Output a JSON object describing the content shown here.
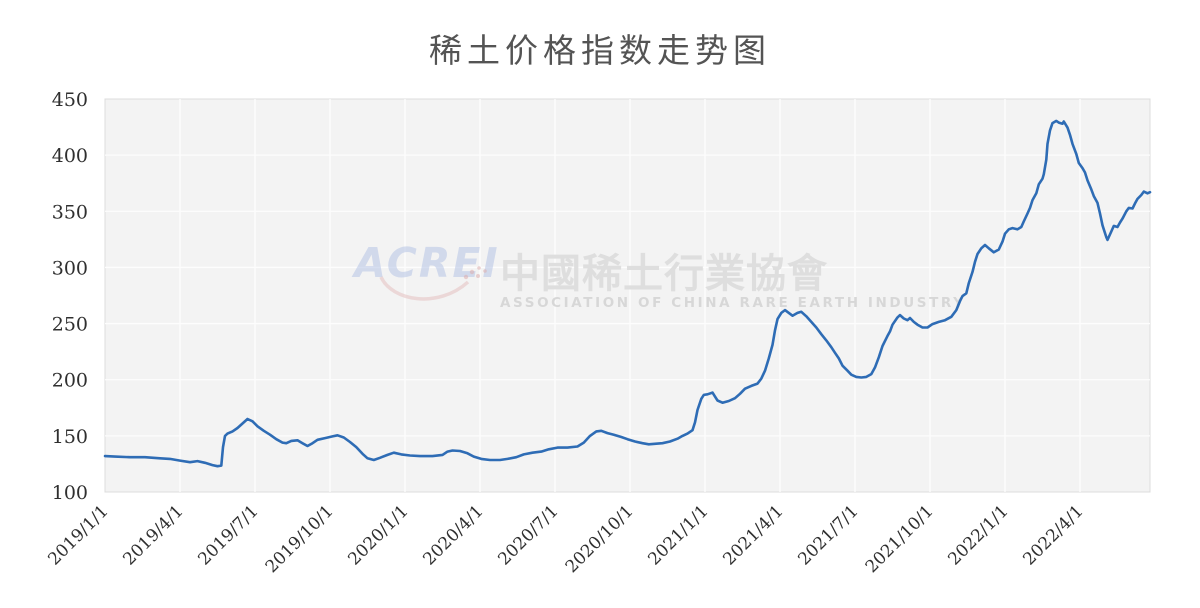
{
  "title": "稀土价格指数走势图",
  "watermark": {
    "logo_text": "ACREI",
    "cn_name": "中國稀土行業協會",
    "en_name": "ASSOCIATION OF CHINA RARE EARTH INDUSTRY"
  },
  "colors": {
    "line": "#2e6cb5",
    "plot_bg": "#f3f3f3",
    "grid": "#fdfdfd",
    "panel_border": "#dcdcdc",
    "axis_text": "#2f2f2f",
    "title_text": "#545454",
    "watermark_blue": "#b7c5e6",
    "watermark_red": "#e3bfbf",
    "watermark_gray": "#dedede"
  },
  "chart_data": {
    "type": "line",
    "title": "稀土价格指数走势图",
    "xlabel": "",
    "ylabel": "",
    "ylim": [
      100,
      450
    ],
    "xlim_months": [
      0,
      41.8
    ],
    "grid": true,
    "legend": "none",
    "y_ticks": [
      100,
      150,
      200,
      250,
      300,
      350,
      400,
      450
    ],
    "x_tick_labels": [
      "2019/1/1",
      "2019/4/1",
      "2019/7/1",
      "2019/10/1",
      "2020/1/1",
      "2020/4/1",
      "2020/7/1",
      "2020/10/1",
      "2021/1/1",
      "2021/4/1",
      "2021/7/1",
      "2021/10/1",
      "2022/1/1",
      "2022/4/1"
    ],
    "x_tick_months": [
      0,
      3,
      6,
      9,
      12,
      15,
      18,
      21,
      24,
      27,
      30,
      33,
      36,
      39
    ],
    "x_tick_rotation_deg": 45,
    "points": [
      [
        0,
        132
      ],
      [
        0.4,
        131.5
      ],
      [
        1,
        131
      ],
      [
        1.6,
        131
      ],
      [
        2.2,
        130
      ],
      [
        2.6,
        129.5
      ],
      [
        3,
        128
      ],
      [
        3.4,
        126.5
      ],
      [
        3.7,
        127.5
      ],
      [
        4,
        126
      ],
      [
        4.3,
        124
      ],
      [
        4.5,
        123
      ],
      [
        4.65,
        123.5
      ],
      [
        4.72,
        140
      ],
      [
        4.8,
        150
      ],
      [
        4.9,
        152
      ],
      [
        5.1,
        154
      ],
      [
        5.3,
        157
      ],
      [
        5.5,
        161
      ],
      [
        5.7,
        165
      ],
      [
        5.9,
        163
      ],
      [
        6.1,
        158.5
      ],
      [
        6.35,
        154.5
      ],
      [
        6.6,
        151
      ],
      [
        6.85,
        147
      ],
      [
        7.1,
        144
      ],
      [
        7.25,
        143.5
      ],
      [
        7.45,
        145.5
      ],
      [
        7.7,
        146
      ],
      [
        7.9,
        143.5
      ],
      [
        8.1,
        141
      ],
      [
        8.3,
        143.5
      ],
      [
        8.5,
        146.5
      ],
      [
        8.8,
        148
      ],
      [
        9.1,
        149.5
      ],
      [
        9.3,
        150.5
      ],
      [
        9.55,
        148.5
      ],
      [
        9.8,
        144.5
      ],
      [
        10.05,
        140
      ],
      [
        10.3,
        134
      ],
      [
        10.5,
        130
      ],
      [
        10.75,
        128.5
      ],
      [
        11,
        130.5
      ],
      [
        11.3,
        133
      ],
      [
        11.55,
        135
      ],
      [
        11.85,
        133.5
      ],
      [
        12.2,
        132.5
      ],
      [
        12.6,
        132
      ],
      [
        13.1,
        132
      ],
      [
        13.5,
        133
      ],
      [
        13.7,
        136
      ],
      [
        13.9,
        137
      ],
      [
        14.2,
        136.5
      ],
      [
        14.5,
        134.5
      ],
      [
        14.75,
        131.5
      ],
      [
        15.05,
        129.5
      ],
      [
        15.4,
        128.5
      ],
      [
        15.8,
        128.5
      ],
      [
        16.1,
        129.5
      ],
      [
        16.45,
        131
      ],
      [
        16.75,
        133.5
      ],
      [
        17.1,
        135
      ],
      [
        17.45,
        136
      ],
      [
        17.75,
        138
      ],
      [
        18.1,
        139.5
      ],
      [
        18.5,
        139.5
      ],
      [
        18.9,
        140.5
      ],
      [
        19.15,
        144
      ],
      [
        19.4,
        150
      ],
      [
        19.65,
        154
      ],
      [
        19.85,
        154.5
      ],
      [
        20.1,
        152.5
      ],
      [
        20.35,
        151
      ],
      [
        20.65,
        149
      ],
      [
        20.9,
        147
      ],
      [
        21.2,
        145
      ],
      [
        21.5,
        143.5
      ],
      [
        21.75,
        142.5
      ],
      [
        22.05,
        143
      ],
      [
        22.3,
        143.5
      ],
      [
        22.6,
        145
      ],
      [
        22.9,
        147.5
      ],
      [
        23.1,
        150
      ],
      [
        23.3,
        152
      ],
      [
        23.5,
        155
      ],
      [
        23.6,
        162
      ],
      [
        23.7,
        173
      ],
      [
        23.85,
        183
      ],
      [
        23.95,
        186.5
      ],
      [
        24.1,
        187
      ],
      [
        24.3,
        188.5
      ],
      [
        24.4,
        185
      ],
      [
        24.5,
        181.5
      ],
      [
        24.7,
        179.5
      ],
      [
        24.95,
        181
      ],
      [
        25.2,
        183.5
      ],
      [
        25.4,
        187.5
      ],
      [
        25.6,
        192
      ],
      [
        25.85,
        194.5
      ],
      [
        26.1,
        196.5
      ],
      [
        26.25,
        201
      ],
      [
        26.4,
        208
      ],
      [
        26.55,
        219
      ],
      [
        26.7,
        231
      ],
      [
        26.8,
        244
      ],
      [
        26.9,
        254
      ],
      [
        27.05,
        259.5
      ],
      [
        27.2,
        262
      ],
      [
        27.35,
        259.5
      ],
      [
        27.5,
        257
      ],
      [
        27.7,
        259.5
      ],
      [
        27.85,
        260.5
      ],
      [
        28.05,
        256.5
      ],
      [
        28.25,
        251.5
      ],
      [
        28.45,
        246.5
      ],
      [
        28.65,
        240.5
      ],
      [
        28.85,
        235
      ],
      [
        29.05,
        229
      ],
      [
        29.2,
        224
      ],
      [
        29.35,
        219
      ],
      [
        29.5,
        212.5
      ],
      [
        29.7,
        208
      ],
      [
        29.85,
        204.5
      ],
      [
        30.05,
        202.5
      ],
      [
        30.25,
        202
      ],
      [
        30.45,
        202.5
      ],
      [
        30.65,
        205
      ],
      [
        30.8,
        211
      ],
      [
        30.95,
        220
      ],
      [
        31.1,
        230
      ],
      [
        31.3,
        239
      ],
      [
        31.4,
        243
      ],
      [
        31.5,
        249
      ],
      [
        31.7,
        255.5
      ],
      [
        31.8,
        257.5
      ],
      [
        31.95,
        254.5
      ],
      [
        32.1,
        253
      ],
      [
        32.2,
        255
      ],
      [
        32.35,
        251.5
      ],
      [
        32.5,
        249
      ],
      [
        32.7,
        246.5
      ],
      [
        32.9,
        246.5
      ],
      [
        33.1,
        249.5
      ],
      [
        33.35,
        251.5
      ],
      [
        33.6,
        253
      ],
      [
        33.85,
        256
      ],
      [
        34.05,
        262
      ],
      [
        34.2,
        270
      ],
      [
        34.3,
        274.5
      ],
      [
        34.45,
        277
      ],
      [
        34.55,
        286
      ],
      [
        34.7,
        296
      ],
      [
        34.8,
        305
      ],
      [
        34.9,
        312
      ],
      [
        35.05,
        317
      ],
      [
        35.2,
        320
      ],
      [
        35.35,
        317
      ],
      [
        35.55,
        313.5
      ],
      [
        35.75,
        316
      ],
      [
        35.9,
        323
      ],
      [
        36,
        330
      ],
      [
        36.15,
        334
      ],
      [
        36.3,
        335
      ],
      [
        36.5,
        334
      ],
      [
        36.65,
        336
      ],
      [
        36.75,
        341
      ],
      [
        36.9,
        348
      ],
      [
        37,
        353
      ],
      [
        37.1,
        360
      ],
      [
        37.25,
        366
      ],
      [
        37.35,
        374
      ],
      [
        37.5,
        379
      ],
      [
        37.55,
        383
      ],
      [
        37.65,
        396
      ],
      [
        37.7,
        410
      ],
      [
        37.8,
        422
      ],
      [
        37.9,
        428.5
      ],
      [
        38.05,
        430.5
      ],
      [
        38.15,
        429
      ],
      [
        38.3,
        428
      ],
      [
        38.35,
        430
      ],
      [
        38.5,
        424.5
      ],
      [
        38.6,
        418
      ],
      [
        38.7,
        410
      ],
      [
        38.85,
        401
      ],
      [
        38.95,
        393
      ],
      [
        39.1,
        388.5
      ],
      [
        39.2,
        384.5
      ],
      [
        39.3,
        377.5
      ],
      [
        39.45,
        369.5
      ],
      [
        39.55,
        363.5
      ],
      [
        39.7,
        357.5
      ],
      [
        39.8,
        348
      ],
      [
        39.9,
        337.5
      ],
      [
        40.05,
        327
      ],
      [
        40.1,
        324.5
      ],
      [
        40.25,
        332
      ],
      [
        40.35,
        337
      ],
      [
        40.5,
        336
      ],
      [
        40.6,
        340
      ],
      [
        40.7,
        343.5
      ],
      [
        40.85,
        350
      ],
      [
        40.95,
        353
      ],
      [
        41.1,
        352.5
      ],
      [
        41.2,
        357
      ],
      [
        41.3,
        361
      ],
      [
        41.45,
        364.5
      ],
      [
        41.55,
        367.5
      ],
      [
        41.7,
        366
      ],
      [
        41.8,
        367
      ]
    ]
  }
}
